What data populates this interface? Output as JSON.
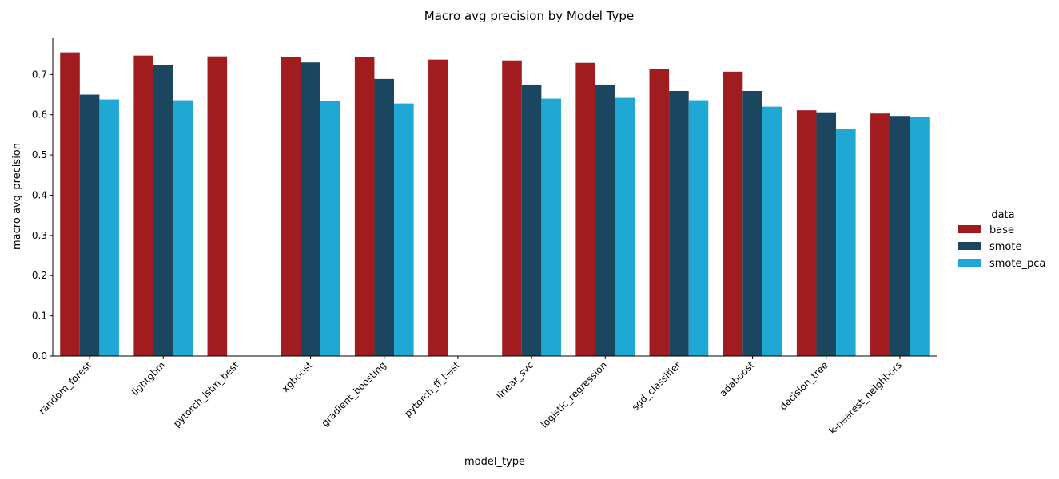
{
  "chart_data": {
    "type": "bar",
    "title": "Macro avg precision by Model Type",
    "xlabel": "model_type",
    "ylabel": "macro avg_precision",
    "ylim": [
      0,
      0.79
    ],
    "yticks": [
      "0.0",
      "0.1",
      "0.2",
      "0.3",
      "0.4",
      "0.5",
      "0.6",
      "0.7"
    ],
    "grid": false,
    "legend": {
      "title": "data",
      "placement": "right"
    },
    "categories": [
      "random_forest",
      "lightgbm",
      "pytorch_lstm_best",
      "xgboost",
      "gradient_boosting",
      "pytorch_ff_best",
      "linear_svc",
      "logistic_regression",
      "sgd_classifier",
      "adaboost",
      "decision_tree",
      "k-nearest_neighbors"
    ],
    "series": [
      {
        "name": "base",
        "color": "#a01c1f",
        "values": [
          0.755,
          0.747,
          0.745,
          0.743,
          0.743,
          0.737,
          0.735,
          0.729,
          0.713,
          0.707,
          0.611,
          0.603
        ]
      },
      {
        "name": "smote",
        "color": "#1a4660",
        "values": [
          0.65,
          0.723,
          null,
          0.73,
          0.689,
          null,
          0.675,
          0.675,
          0.659,
          0.659,
          0.606,
          0.597
        ]
      },
      {
        "name": "smote_pca",
        "color": "#1fa8d4",
        "values": [
          0.638,
          0.636,
          null,
          0.634,
          0.628,
          null,
          0.64,
          0.642,
          0.636,
          0.62,
          0.564,
          0.594
        ]
      }
    ]
  }
}
